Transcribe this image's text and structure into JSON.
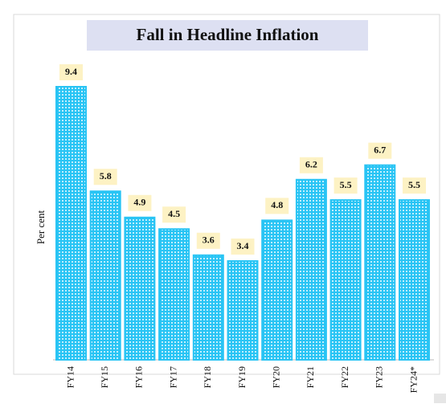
{
  "chart_data": {
    "type": "bar",
    "title": "Fall in Headline Inflation",
    "y_label": "Per cent",
    "categories": [
      "FY14",
      "FY15",
      "FY16",
      "FY17",
      "FY18",
      "FY19",
      "FY20",
      "FY21",
      "FY22",
      "FY23",
      "FY24*"
    ],
    "values": [
      9.4,
      5.8,
      4.9,
      4.5,
      3.6,
      3.4,
      4.8,
      6.2,
      5.5,
      6.7,
      5.5
    ],
    "color": "#29c4f4"
  }
}
